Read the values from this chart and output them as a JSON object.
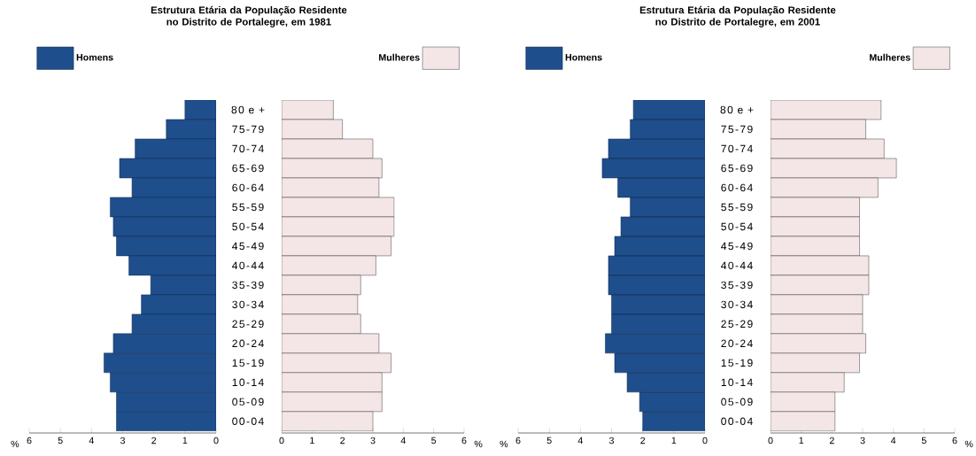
{
  "chart_data": [
    {
      "type": "bar",
      "orientation": "horizontal",
      "title": "Estrutura Etária da População Residente no Distrito de Portalegre, em 1981",
      "xlabel": "%",
      "categories": [
        "80 e +",
        "75-79",
        "70-74",
        "65-69",
        "60-64",
        "55-59",
        "50-54",
        "45-49",
        "40-44",
        "35-39",
        "30-34",
        "25-29",
        "20-24",
        "15-19",
        "10-14",
        "05-09",
        "00-04"
      ],
      "series": [
        {
          "name": "Homens",
          "color": "#1f4e8c",
          "values": [
            1.0,
            1.6,
            2.6,
            3.1,
            2.7,
            3.4,
            3.3,
            3.2,
            2.8,
            2.1,
            2.4,
            2.7,
            3.3,
            3.6,
            3.4,
            3.2,
            3.2
          ]
        }
      ],
      "xlim": [
        6,
        0
      ],
      "xticks": [
        0,
        1,
        2,
        3,
        4,
        5,
        6
      ],
      "legend": "top left"
    },
    {
      "type": "bar",
      "orientation": "horizontal",
      "xlabel": "%",
      "categories": [
        null,
        null,
        null,
        null,
        null,
        null,
        null,
        null,
        null,
        null,
        null,
        null,
        null,
        null,
        null,
        null,
        null
      ],
      "series": [
        {
          "name": "Mulheres",
          "color": "#f4e6e6",
          "values": [
            1.7,
            2.0,
            3.0,
            3.3,
            3.2,
            3.7,
            3.7,
            3.6,
            3.1,
            2.6,
            2.5,
            2.6,
            3.2,
            3.6,
            3.3,
            3.3,
            3.0
          ]
        }
      ],
      "xlim": [
        0,
        6
      ],
      "xticks": [
        0,
        1,
        2,
        3,
        4,
        5,
        6
      ],
      "legend": "top right",
      "tick_labels": "x"
    },
    {
      "type": "bar",
      "orientation": "horizontal",
      "title": "Estrutura Etária da População Residente no Distrito de Portalegre, em 2001",
      "xlabel": "%",
      "categories": [
        "80 e +",
        "75-79",
        "70-74",
        "65-69",
        "60-64",
        "55-59",
        "50-54",
        "45-49",
        "40-44",
        "35-39",
        "30-34",
        "25-29",
        "20-24",
        "15-19",
        "10-14",
        "05-09",
        "00-04"
      ],
      "series": [
        {
          "name": "Homens",
          "color": "#1f4e8c",
          "values": [
            2.3,
            2.4,
            3.1,
            3.3,
            2.8,
            2.4,
            2.7,
            2.9,
            3.1,
            3.1,
            3.0,
            3.0,
            3.2,
            2.9,
            2.5,
            2.1,
            2.0
          ]
        }
      ],
      "xlim": [
        6,
        0
      ],
      "xticks": [
        0,
        1,
        2,
        3,
        4,
        5,
        6
      ],
      "legend": "top left"
    },
    {
      "type": "bar",
      "orientation": "horizontal",
      "xlabel": "%",
      "categories": [
        null,
        null,
        null,
        null,
        null,
        null,
        null,
        null,
        null,
        null,
        null,
        null,
        null,
        null,
        null,
        null,
        null
      ],
      "series": [
        {
          "name": "Mulheres",
          "color": "#f4e6e6",
          "values": [
            3.6,
            3.1,
            3.7,
            4.1,
            3.5,
            2.9,
            2.9,
            2.9,
            3.2,
            3.2,
            3.0,
            3.0,
            3.1,
            2.9,
            2.4,
            2.1,
            2.1
          ]
        }
      ],
      "xlim": [
        0,
        6
      ],
      "xticks": [
        0,
        1,
        2,
        3,
        4,
        5,
        6
      ],
      "legend": "top right",
      "tick_labels": "x"
    }
  ]
}
